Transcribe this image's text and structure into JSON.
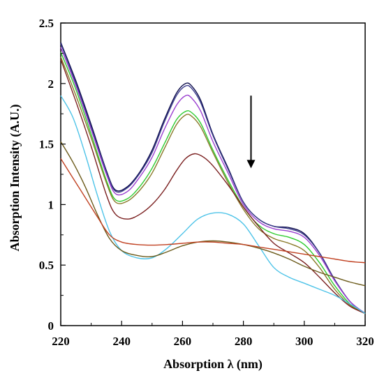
{
  "chart_data": {
    "type": "line",
    "xlabel": "Absorption λ (nm)",
    "ylabel": "Absorption Intensity (A.U.)",
    "xlim": [
      220,
      320
    ],
    "ylim": [
      0,
      2.5
    ],
    "xticks": [
      "220",
      "240",
      "260",
      "280",
      "300",
      "320"
    ],
    "yticks": [
      "0",
      "0.5",
      "1",
      "1.5",
      "2",
      "2.5"
    ],
    "grid": false,
    "annotation": "downward arrow indicating decreasing absorption at ~282 nm",
    "series": [
      {
        "color": "#0a0a4a",
        "x": [
          220,
          225,
          230,
          235,
          238,
          242,
          246,
          250,
          254,
          258,
          261,
          263,
          266,
          270,
          275,
          280,
          285,
          290,
          295,
          300,
          305,
          310,
          315,
          320
        ],
        "y": [
          2.34,
          2.02,
          1.66,
          1.28,
          1.12,
          1.15,
          1.27,
          1.45,
          1.7,
          1.92,
          2.0,
          1.98,
          1.86,
          1.58,
          1.3,
          1.02,
          0.88,
          0.82,
          0.81,
          0.76,
          0.6,
          0.38,
          0.2,
          0.1
        ]
      },
      {
        "color": "#3a3a8c",
        "x": [
          220,
          225,
          230,
          235,
          238,
          242,
          246,
          250,
          254,
          258,
          261,
          263,
          266,
          270,
          275,
          280,
          285,
          290,
          295,
          300,
          305,
          310,
          315,
          320
        ],
        "y": [
          2.33,
          2.0,
          1.64,
          1.27,
          1.11,
          1.14,
          1.26,
          1.43,
          1.68,
          1.9,
          1.98,
          1.96,
          1.84,
          1.57,
          1.29,
          1.02,
          0.88,
          0.82,
          0.8,
          0.75,
          0.6,
          0.38,
          0.2,
          0.1
        ]
      },
      {
        "color": "#9a3fd0",
        "x": [
          220,
          225,
          230,
          235,
          238,
          242,
          246,
          250,
          254,
          258,
          261,
          263,
          266,
          270,
          275,
          280,
          285,
          290,
          295,
          300,
          305,
          310,
          315,
          320
        ],
        "y": [
          2.3,
          1.98,
          1.62,
          1.25,
          1.09,
          1.11,
          1.23,
          1.39,
          1.62,
          1.82,
          1.9,
          1.88,
          1.77,
          1.52,
          1.26,
          1.0,
          0.86,
          0.8,
          0.78,
          0.73,
          0.58,
          0.37,
          0.2,
          0.1
        ]
      },
      {
        "color": "#2ecc2e",
        "x": [
          220,
          225,
          230,
          235,
          238,
          242,
          246,
          250,
          254,
          258,
          261,
          263,
          266,
          270,
          275,
          280,
          285,
          290,
          295,
          300,
          305,
          310,
          315,
          320
        ],
        "y": [
          2.26,
          1.95,
          1.58,
          1.2,
          1.04,
          1.05,
          1.15,
          1.3,
          1.5,
          1.7,
          1.77,
          1.76,
          1.67,
          1.45,
          1.2,
          0.98,
          0.83,
          0.76,
          0.73,
          0.67,
          0.52,
          0.33,
          0.18,
          0.1
        ]
      },
      {
        "color": "#8a7a2a",
        "x": [
          220,
          225,
          230,
          235,
          238,
          242,
          246,
          250,
          254,
          258,
          261,
          263,
          266,
          270,
          275,
          280,
          285,
          290,
          295,
          300,
          305,
          310,
          315,
          320
        ],
        "y": [
          2.22,
          1.9,
          1.55,
          1.18,
          1.02,
          1.03,
          1.12,
          1.26,
          1.46,
          1.66,
          1.74,
          1.73,
          1.64,
          1.43,
          1.18,
          0.96,
          0.8,
          0.72,
          0.68,
          0.62,
          0.48,
          0.3,
          0.17,
          0.1
        ]
      },
      {
        "color": "#7a1f1f",
        "x": [
          220,
          225,
          230,
          235,
          238,
          242,
          246,
          250,
          254,
          258,
          261,
          264,
          267,
          270,
          275,
          280,
          285,
          290,
          295,
          300,
          305,
          310,
          315,
          320
        ],
        "y": [
          2.2,
          1.85,
          1.48,
          1.08,
          0.92,
          0.88,
          0.92,
          1.0,
          1.12,
          1.28,
          1.38,
          1.42,
          1.39,
          1.32,
          1.16,
          0.98,
          0.82,
          0.68,
          0.6,
          0.52,
          0.4,
          0.27,
          0.16,
          0.1
        ]
      },
      {
        "color": "#4dc3e8",
        "x": [
          220,
          224,
          228,
          232,
          236,
          240,
          245,
          250,
          255,
          260,
          265,
          270,
          275,
          280,
          285,
          290,
          295,
          300,
          305,
          310,
          315,
          320
        ],
        "y": [
          1.9,
          1.72,
          1.42,
          1.08,
          0.78,
          0.62,
          0.56,
          0.56,
          0.64,
          0.76,
          0.88,
          0.93,
          0.92,
          0.84,
          0.66,
          0.48,
          0.4,
          0.35,
          0.3,
          0.25,
          0.18,
          0.1
        ]
      },
      {
        "color": "#6b5a1a",
        "x": [
          220,
          224,
          228,
          232,
          236,
          240,
          245,
          250,
          255,
          260,
          265,
          270,
          275,
          280,
          285,
          290,
          295,
          300,
          305,
          310,
          315,
          320
        ],
        "y": [
          1.52,
          1.35,
          1.15,
          0.92,
          0.72,
          0.62,
          0.58,
          0.57,
          0.61,
          0.66,
          0.69,
          0.7,
          0.69,
          0.67,
          0.64,
          0.6,
          0.55,
          0.49,
          0.44,
          0.4,
          0.36,
          0.33
        ]
      },
      {
        "color": "#c04020",
        "x": [
          220,
          224,
          228,
          232,
          236,
          240,
          245,
          250,
          255,
          260,
          265,
          270,
          275,
          280,
          285,
          290,
          295,
          300,
          305,
          310,
          315,
          320
        ],
        "y": [
          1.38,
          1.22,
          1.06,
          0.9,
          0.75,
          0.69,
          0.67,
          0.665,
          0.67,
          0.68,
          0.69,
          0.69,
          0.68,
          0.67,
          0.65,
          0.63,
          0.61,
          0.59,
          0.57,
          0.55,
          0.53,
          0.52
        ]
      }
    ]
  }
}
